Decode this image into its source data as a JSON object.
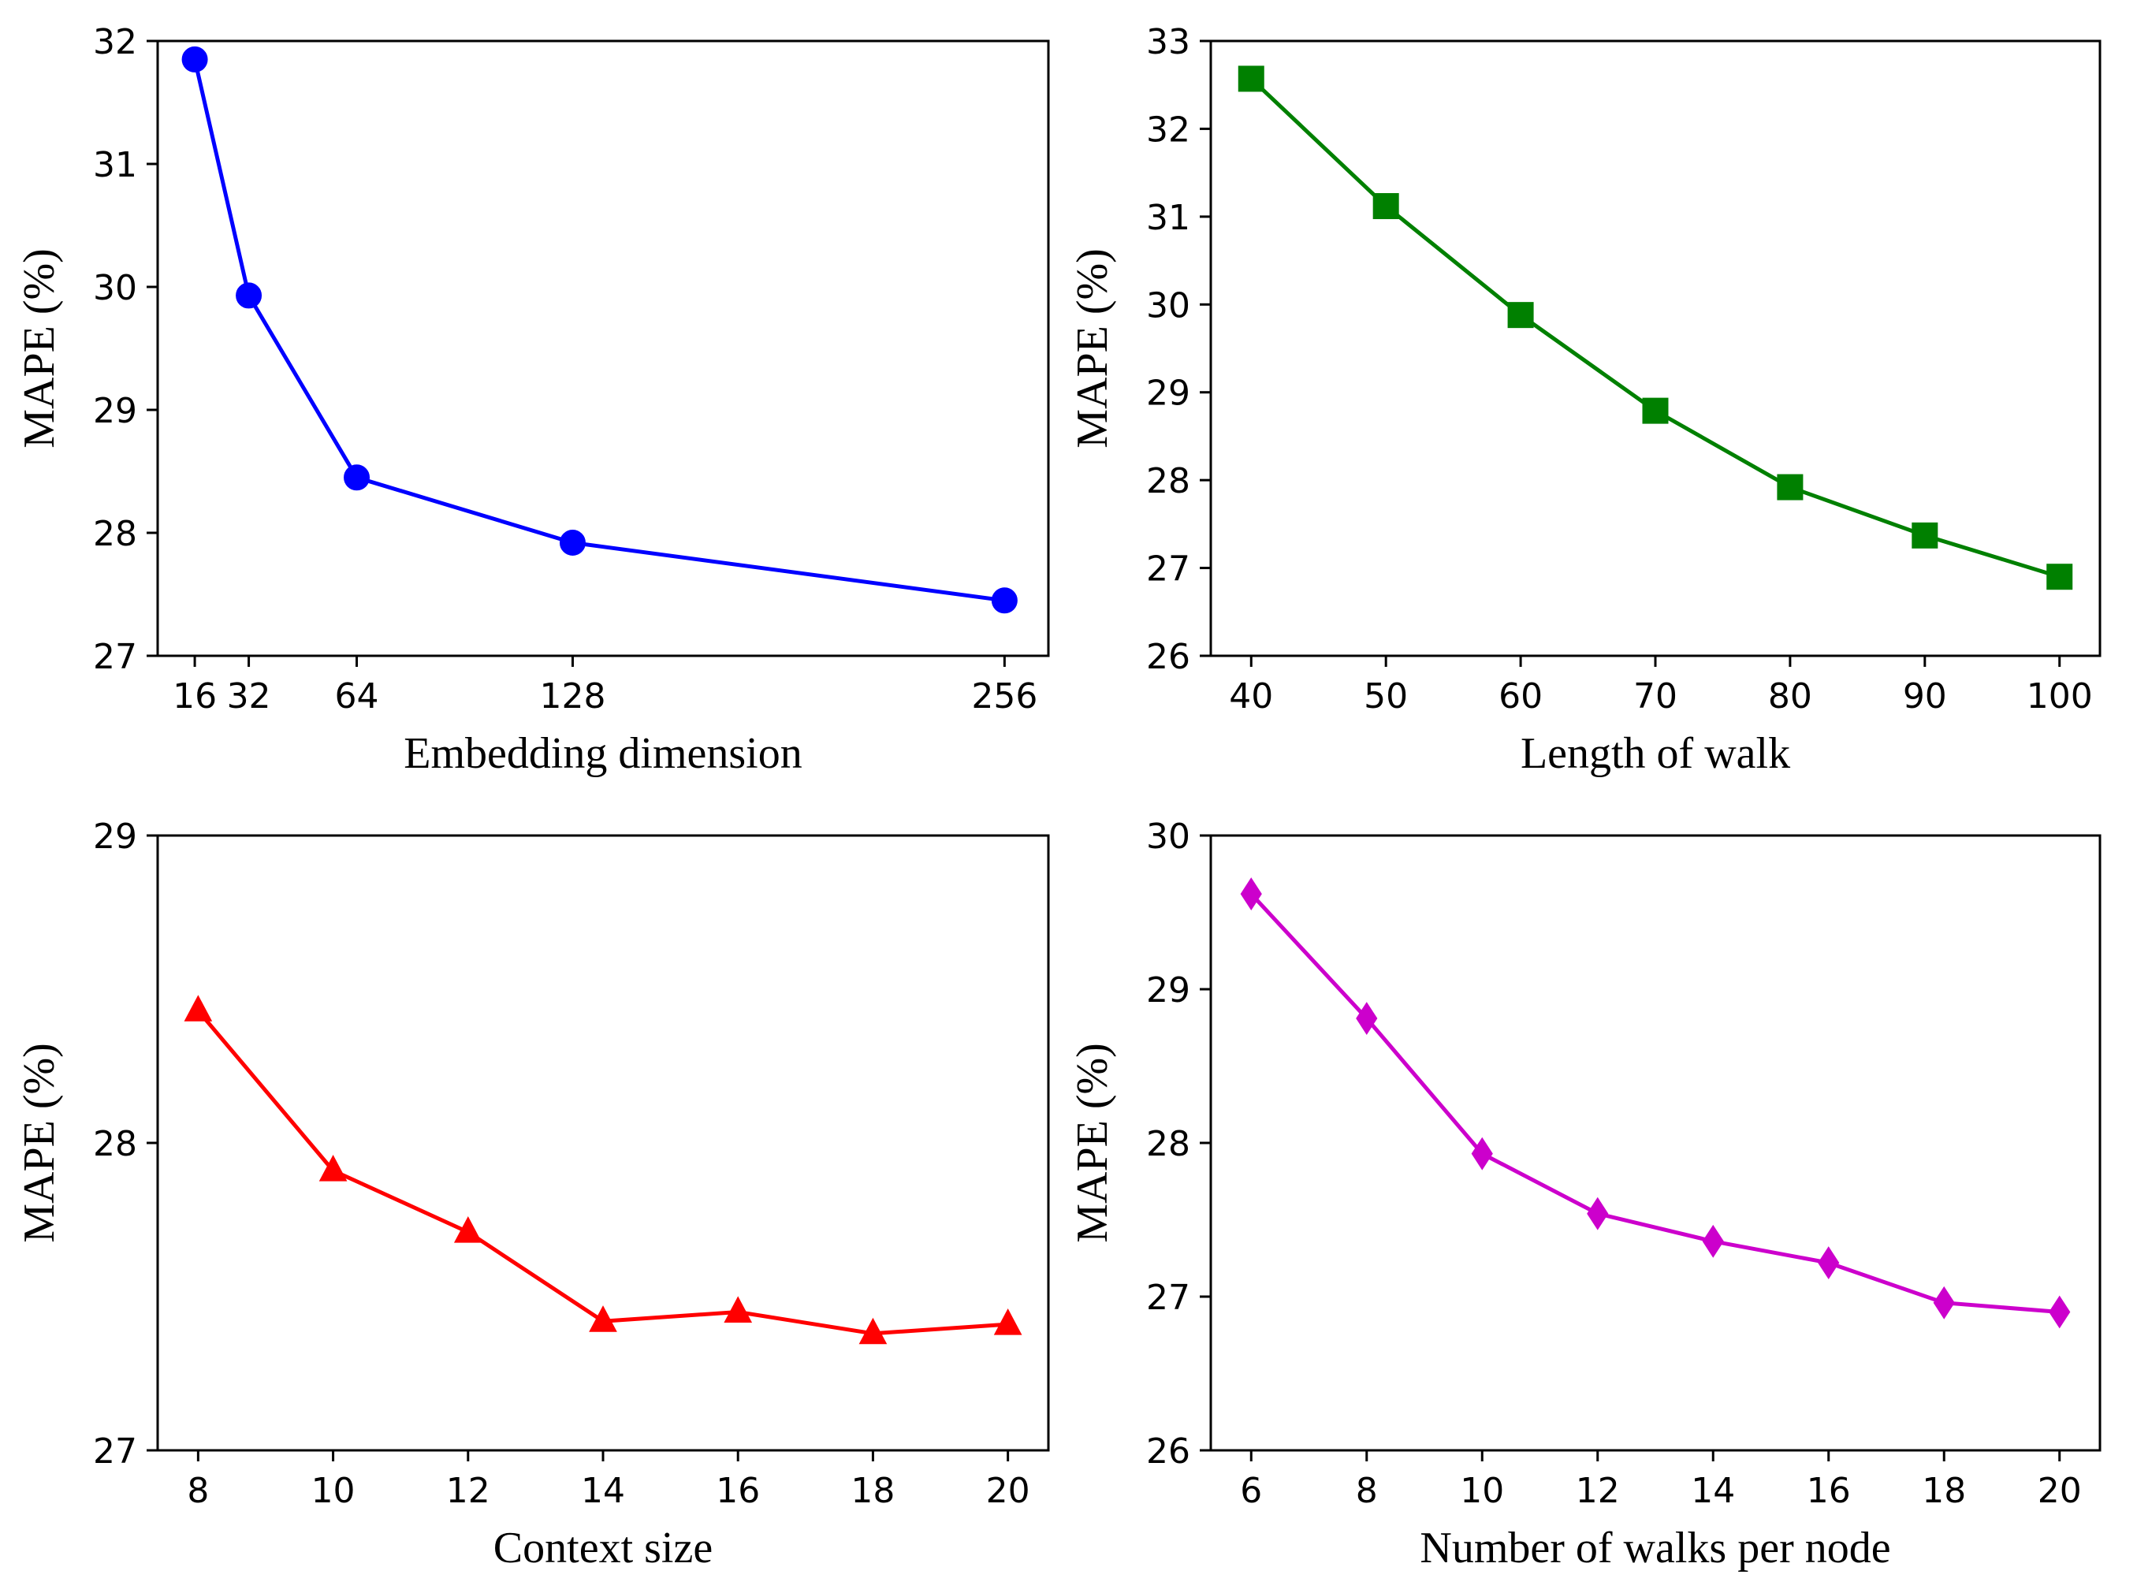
{
  "chart_data": [
    {
      "type": "line",
      "xlabel": "Embedding dimension",
      "ylabel": "MAPE (%)",
      "xlim": [
        5,
        269
      ],
      "ylim": [
        27,
        32
      ],
      "xticks": [
        "16",
        "32",
        "64",
        "128",
        "256"
      ],
      "yticks": [
        "27",
        "28",
        "29",
        "30",
        "31",
        "32"
      ],
      "marker": "circle",
      "color": "#0000ff",
      "series": [
        {
          "name": "MAPE",
          "x": [
            16,
            32,
            64,
            128,
            256
          ],
          "values": [
            31.85,
            29.93,
            28.45,
            27.92,
            27.45
          ]
        }
      ]
    },
    {
      "type": "line",
      "xlabel": "Length of walk",
      "ylabel": "MAPE (%)",
      "xlim": [
        37,
        103
      ],
      "ylim": [
        26,
        33
      ],
      "xticks": [
        "40",
        "50",
        "60",
        "70",
        "80",
        "90",
        "100"
      ],
      "yticks": [
        "26",
        "27",
        "28",
        "29",
        "30",
        "31",
        "32",
        "33"
      ],
      "marker": "square",
      "color": "#008000",
      "series": [
        {
          "name": "MAPE",
          "x": [
            40,
            50,
            60,
            70,
            80,
            90,
            100
          ],
          "values": [
            32.57,
            31.12,
            29.88,
            28.79,
            27.92,
            27.37,
            26.9
          ]
        }
      ]
    },
    {
      "type": "line",
      "xlabel": "Context size",
      "ylabel": "MAPE (%)",
      "xlim": [
        7.4,
        20.6
      ],
      "ylim": [
        27,
        29
      ],
      "xticks": [
        "8",
        "10",
        "12",
        "14",
        "16",
        "18",
        "20"
      ],
      "yticks": [
        "27",
        "28",
        "29"
      ],
      "marker": "triangle",
      "color": "#ff0000",
      "series": [
        {
          "name": "MAPE",
          "x": [
            8,
            10,
            12,
            14,
            16,
            18,
            20
          ],
          "values": [
            28.43,
            27.91,
            27.71,
            27.42,
            27.45,
            27.38,
            27.41
          ]
        }
      ]
    },
    {
      "type": "line",
      "xlabel": "Number of walks per node",
      "ylabel": "MAPE (%)",
      "xlim": [
        5.3,
        20.7
      ],
      "ylim": [
        26,
        30
      ],
      "xticks": [
        "6",
        "8",
        "10",
        "12",
        "14",
        "16",
        "18",
        "20"
      ],
      "yticks": [
        "26",
        "27",
        "28",
        "29",
        "30"
      ],
      "marker": "diamond",
      "color": "#cc00cc",
      "series": [
        {
          "name": "MAPE",
          "x": [
            6,
            8,
            10,
            12,
            14,
            16,
            18,
            20
          ],
          "values": [
            29.62,
            28.81,
            27.93,
            27.54,
            27.36,
            27.22,
            26.96,
            26.9
          ]
        }
      ]
    }
  ]
}
